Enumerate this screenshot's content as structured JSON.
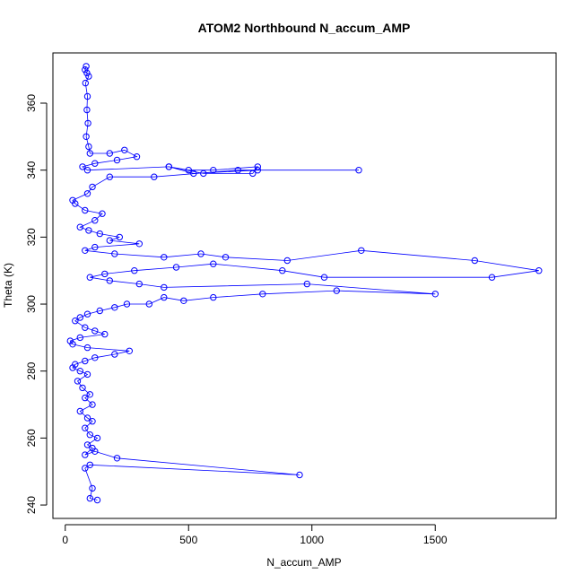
{
  "chart_data": {
    "type": "scatter",
    "title": "ATOM2 Northbound N_accum_AMP",
    "xlabel": "N_accum_AMP",
    "ylabel": "Theta (K)",
    "xlim": [
      -50,
      1990
    ],
    "ylim": [
      236,
      375
    ],
    "x_ticks": [
      0,
      500,
      1000,
      1500
    ],
    "y_ticks": [
      240,
      260,
      280,
      300,
      320,
      340,
      360
    ],
    "grid": false,
    "legend": "none",
    "style": "points-connected-by-lines",
    "series": [
      {
        "color": "#0000ff",
        "points": [
          [
            85,
            371
          ],
          [
            80,
            370
          ],
          [
            88,
            369
          ],
          [
            95,
            368
          ],
          [
            82,
            366
          ],
          [
            90,
            362
          ],
          [
            88,
            358
          ],
          [
            92,
            354
          ],
          [
            85,
            350
          ],
          [
            95,
            347
          ],
          [
            100,
            345
          ],
          [
            180,
            345
          ],
          [
            240,
            346
          ],
          [
            290,
            344
          ],
          [
            210,
            343
          ],
          [
            120,
            342
          ],
          [
            70,
            341
          ],
          [
            90,
            340
          ],
          [
            420,
            341
          ],
          [
            500,
            340
          ],
          [
            600,
            340
          ],
          [
            780,
            341
          ],
          [
            760,
            339
          ],
          [
            560,
            339
          ],
          [
            420,
            341
          ],
          [
            520,
            339
          ],
          [
            780,
            340
          ],
          [
            1190,
            340
          ],
          [
            700,
            340
          ],
          [
            360,
            338
          ],
          [
            180,
            338
          ],
          [
            110,
            335
          ],
          [
            90,
            333
          ],
          [
            30,
            331
          ],
          [
            40,
            330
          ],
          [
            80,
            328
          ],
          [
            150,
            327
          ],
          [
            120,
            325
          ],
          [
            60,
            323
          ],
          [
            95,
            322
          ],
          [
            140,
            321
          ],
          [
            220,
            320
          ],
          [
            180,
            319
          ],
          [
            300,
            318
          ],
          [
            120,
            317
          ],
          [
            80,
            316
          ],
          [
            200,
            315
          ],
          [
            400,
            314
          ],
          [
            550,
            315
          ],
          [
            650,
            314
          ],
          [
            900,
            313
          ],
          [
            1200,
            316
          ],
          [
            1660,
            313
          ],
          [
            1920,
            310
          ],
          [
            1730,
            308
          ],
          [
            1050,
            308
          ],
          [
            880,
            310
          ],
          [
            600,
            312
          ],
          [
            450,
            311
          ],
          [
            280,
            310
          ],
          [
            160,
            309
          ],
          [
            100,
            308
          ],
          [
            180,
            307
          ],
          [
            300,
            306
          ],
          [
            400,
            305
          ],
          [
            980,
            306
          ],
          [
            1500,
            303
          ],
          [
            1100,
            304
          ],
          [
            800,
            303
          ],
          [
            600,
            302
          ],
          [
            480,
            301
          ],
          [
            400,
            302
          ],
          [
            340,
            300
          ],
          [
            250,
            300
          ],
          [
            200,
            299
          ],
          [
            140,
            298
          ],
          [
            90,
            297
          ],
          [
            60,
            296
          ],
          [
            40,
            295
          ],
          [
            80,
            293
          ],
          [
            120,
            292
          ],
          [
            160,
            291
          ],
          [
            60,
            290
          ],
          [
            20,
            289
          ],
          [
            30,
            288
          ],
          [
            90,
            287
          ],
          [
            260,
            286
          ],
          [
            200,
            285
          ],
          [
            120,
            284
          ],
          [
            80,
            283
          ],
          [
            40,
            282
          ],
          [
            30,
            281
          ],
          [
            60,
            280
          ],
          [
            90,
            279
          ],
          [
            50,
            277
          ],
          [
            70,
            275
          ],
          [
            100,
            273
          ],
          [
            80,
            272
          ],
          [
            110,
            270
          ],
          [
            60,
            268
          ],
          [
            90,
            266
          ],
          [
            110,
            265
          ],
          [
            80,
            263
          ],
          [
            100,
            261
          ],
          [
            130,
            260
          ],
          [
            90,
            258
          ],
          [
            110,
            257
          ],
          [
            80,
            255
          ],
          [
            120,
            256
          ],
          [
            210,
            254
          ],
          [
            950,
            249
          ],
          [
            100,
            252
          ],
          [
            80,
            251
          ],
          [
            110,
            245
          ],
          [
            100,
            242
          ],
          [
            130,
            241.5
          ]
        ]
      }
    ]
  }
}
